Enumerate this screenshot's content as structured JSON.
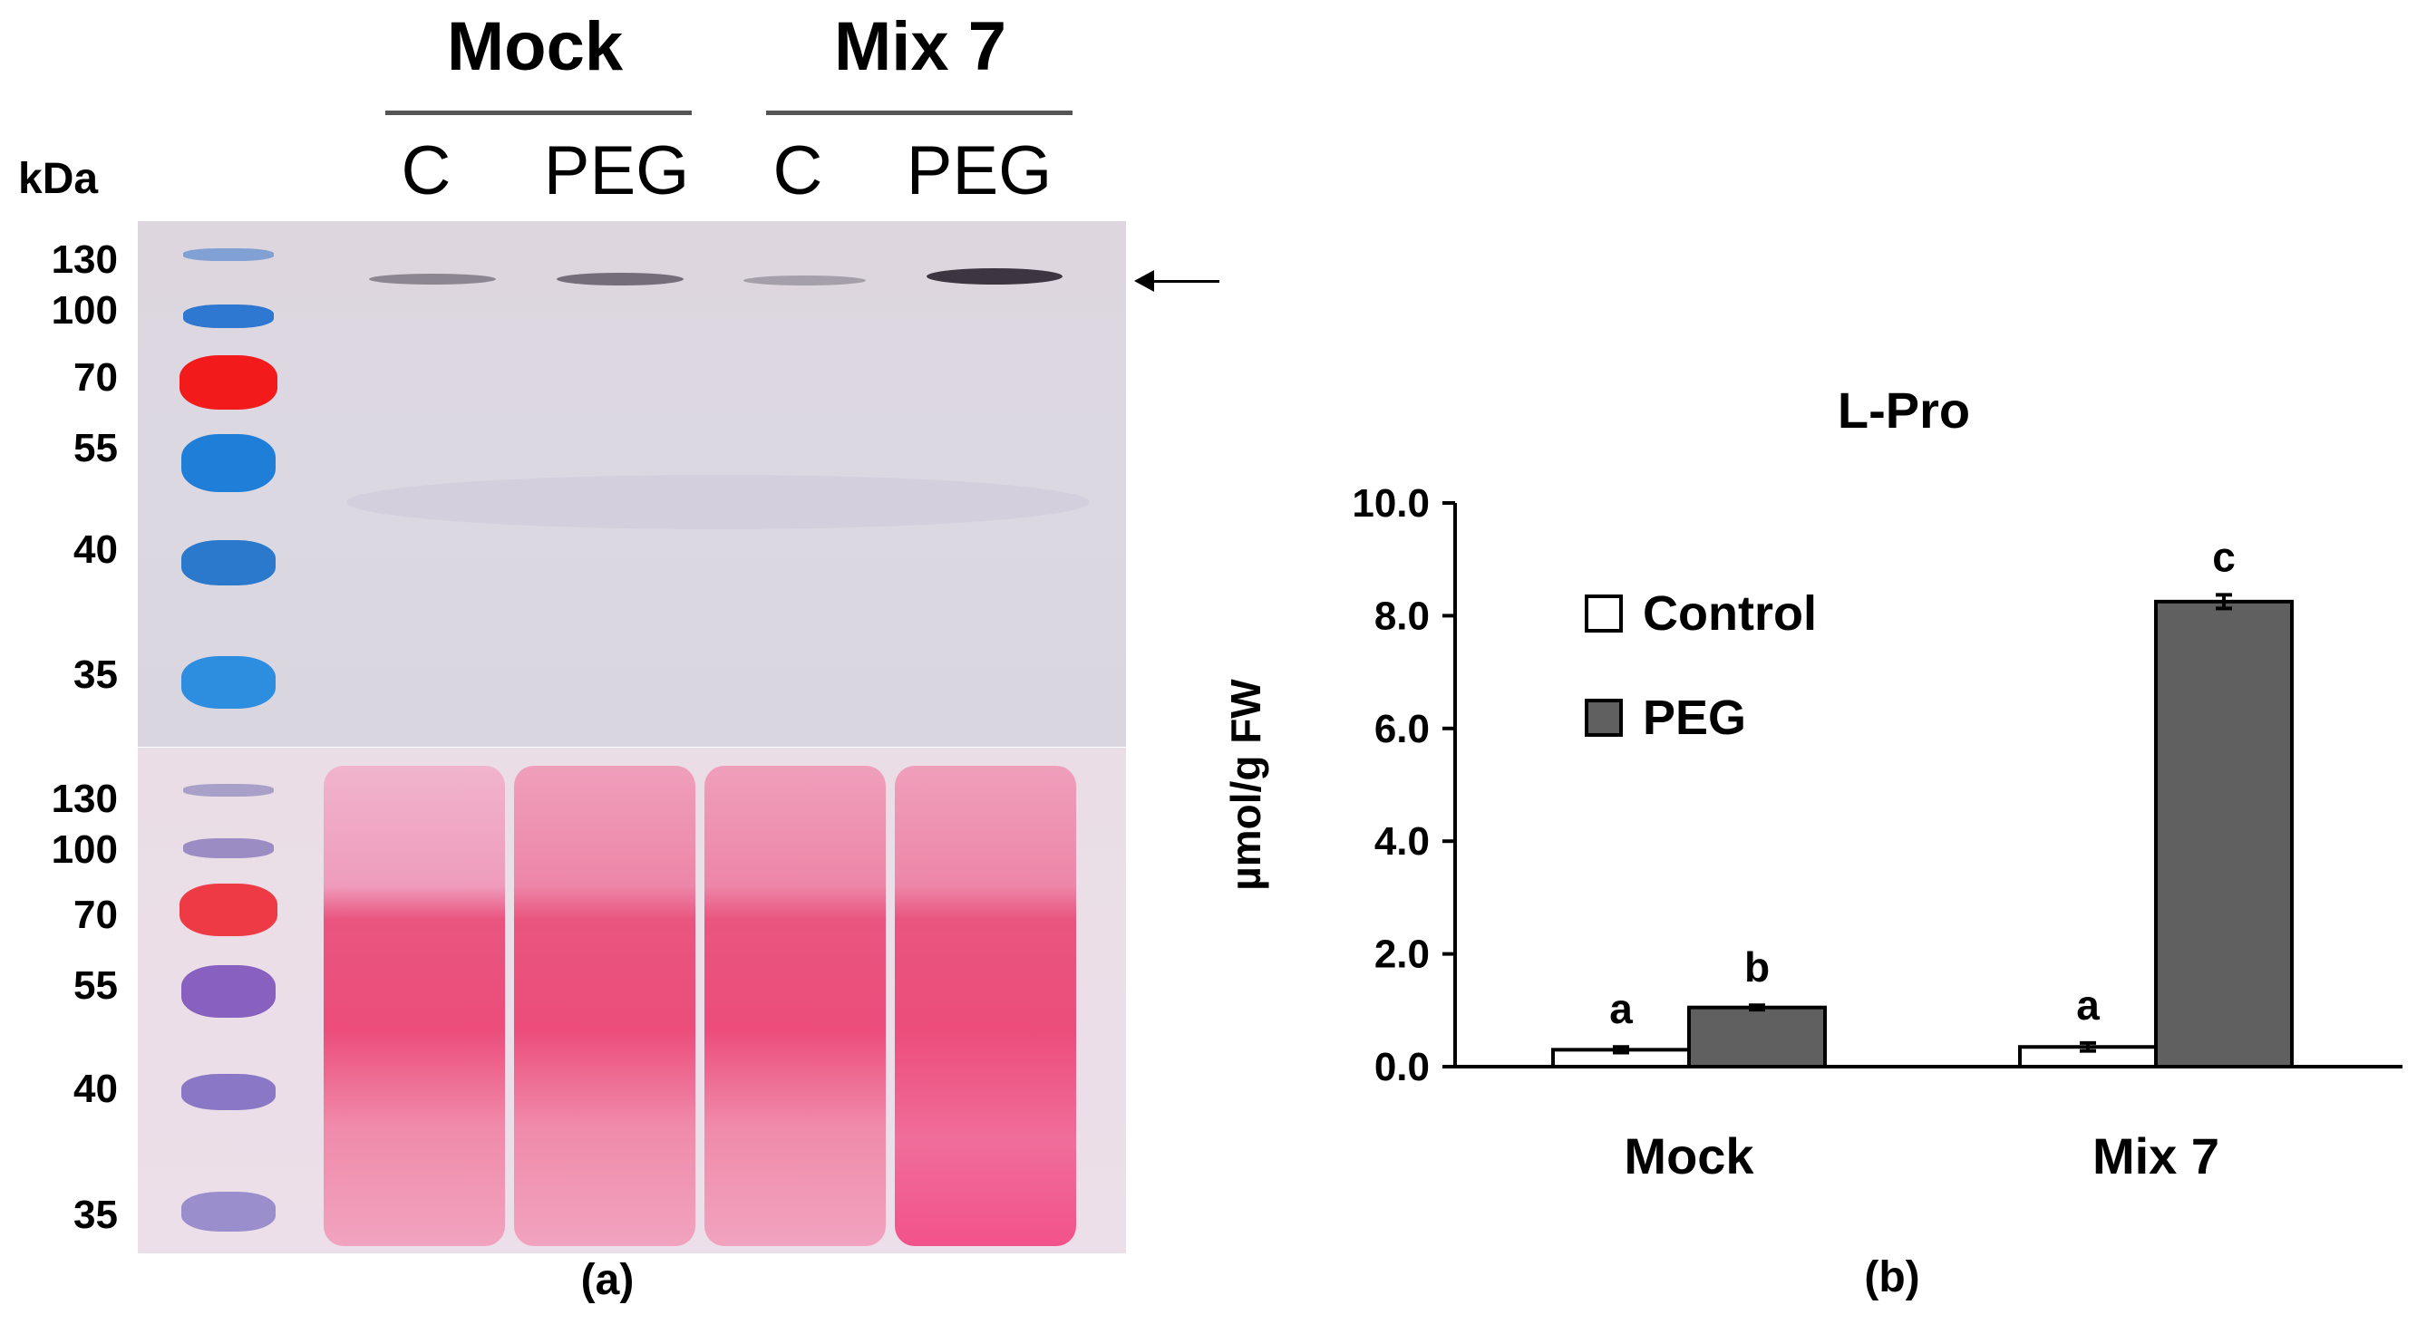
{
  "panel_a": {
    "kda_label": "kDa",
    "group_labels": [
      "Mock",
      "Mix 7"
    ],
    "lane_labels": [
      "C",
      "PEG",
      "C",
      "PEG"
    ],
    "western_markers": [
      "130",
      "100",
      "70",
      "55",
      "40",
      "35"
    ],
    "ponceau_markers": [
      "130",
      "100",
      "70",
      "55",
      "40",
      "35"
    ],
    "caption": "(a)",
    "arrow": "←"
  },
  "chart_data": {
    "type": "bar",
    "title": "L-Pro",
    "ylabel": "µmol/g FW",
    "xlabel": "",
    "categories": [
      "Mock",
      "Mix 7"
    ],
    "series": [
      {
        "name": "Control",
        "values": [
          0.3,
          0.35
        ],
        "errors": [
          0.05,
          0.07
        ],
        "letters": [
          "a",
          "a"
        ],
        "color": "#ffffff"
      },
      {
        "name": "PEG",
        "values": [
          1.05,
          8.25
        ],
        "errors": [
          0.04,
          0.12
        ],
        "letters": [
          "b",
          "c"
        ],
        "color": "#606060"
      }
    ],
    "ylim": [
      0,
      10
    ],
    "yticks": [
      "0.0",
      "2.0",
      "4.0",
      "6.0",
      "8.0",
      "10.0"
    ],
    "legend_position": "top-left",
    "caption": "(b)"
  }
}
